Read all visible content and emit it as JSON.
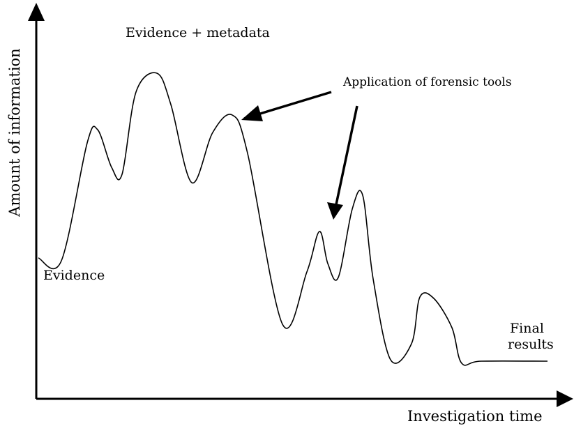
{
  "title": "Evidence + metadata",
  "annotations": {
    "tools": "Application of forensic tools",
    "start": "Evidence",
    "end": [
      "Final",
      "results"
    ]
  },
  "axes": {
    "y_label": "Amount of information",
    "x_label": "Investigation time"
  }
}
